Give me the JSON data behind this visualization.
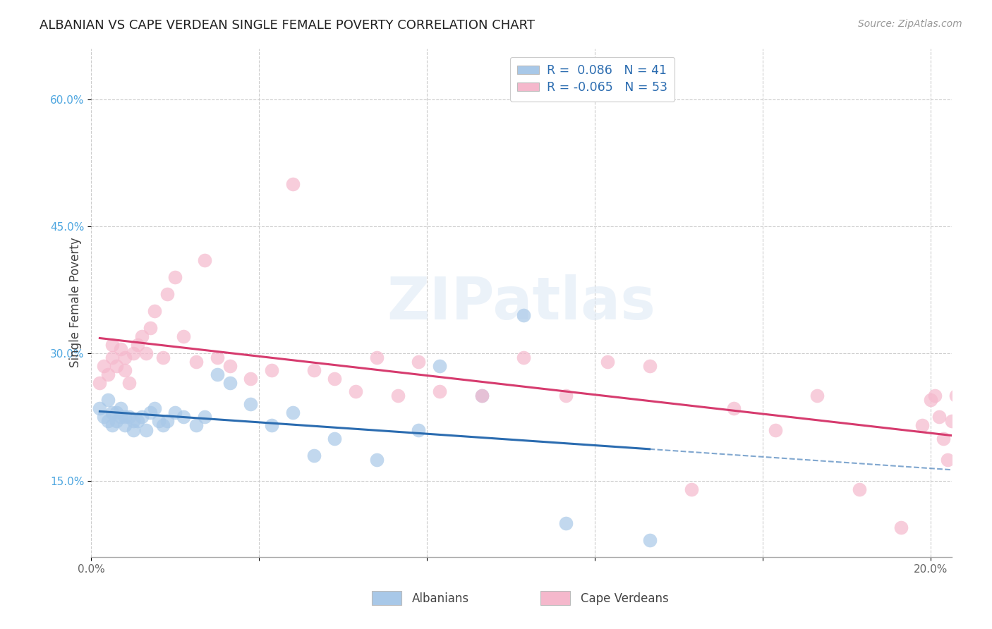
{
  "title": "ALBANIAN VS CAPE VERDEAN SINGLE FEMALE POVERTY CORRELATION CHART",
  "source": "Source: ZipAtlas.com",
  "ylabel": "Single Female Poverty",
  "ytick_vals": [
    0.15,
    0.3,
    0.45,
    0.6
  ],
  "ytick_labels": [
    "15.0%",
    "30.0%",
    "45.0%",
    "60.0%"
  ],
  "xtick_vals": [
    0.0,
    0.04,
    0.08,
    0.12,
    0.16,
    0.2
  ],
  "xtick_labels": [
    "0.0%",
    "",
    "",
    "",
    "",
    "20.0%"
  ],
  "xlim": [
    0.0,
    0.205
  ],
  "ylim": [
    0.06,
    0.66
  ],
  "albanian_color": "#a8c8e8",
  "capeverdean_color": "#f5b8cc",
  "albanian_line_color": "#2b6cb0",
  "capeverdean_line_color": "#d63b6e",
  "watermark": "ZIPatlas",
  "legend_label1": "Albanians",
  "legend_label2": "Cape Verdeans",
  "legend_r1": "R =  0.086",
  "legend_n1": "N = 41",
  "legend_r2": "R = -0.065",
  "legend_n2": "N = 53",
  "albanian_R": 0.086,
  "capeverdean_R": -0.065,
  "albanian_x": [
    0.002,
    0.003,
    0.004,
    0.004,
    0.005,
    0.005,
    0.006,
    0.006,
    0.007,
    0.007,
    0.008,
    0.008,
    0.009,
    0.01,
    0.01,
    0.011,
    0.012,
    0.013,
    0.014,
    0.015,
    0.016,
    0.017,
    0.018,
    0.02,
    0.022,
    0.025,
    0.027,
    0.03,
    0.033,
    0.038,
    0.043,
    0.048,
    0.053,
    0.058,
    0.068,
    0.078,
    0.083,
    0.093,
    0.103,
    0.113,
    0.133
  ],
  "albanian_y": [
    0.235,
    0.225,
    0.245,
    0.22,
    0.23,
    0.215,
    0.23,
    0.22,
    0.225,
    0.235,
    0.225,
    0.215,
    0.225,
    0.22,
    0.21,
    0.22,
    0.225,
    0.21,
    0.23,
    0.235,
    0.22,
    0.215,
    0.22,
    0.23,
    0.225,
    0.215,
    0.225,
    0.275,
    0.265,
    0.24,
    0.215,
    0.23,
    0.18,
    0.2,
    0.175,
    0.21,
    0.285,
    0.25,
    0.345,
    0.1,
    0.08
  ],
  "capeverdean_x": [
    0.002,
    0.003,
    0.004,
    0.005,
    0.005,
    0.006,
    0.007,
    0.008,
    0.008,
    0.009,
    0.01,
    0.011,
    0.012,
    0.013,
    0.014,
    0.015,
    0.017,
    0.018,
    0.02,
    0.022,
    0.025,
    0.027,
    0.03,
    0.033,
    0.038,
    0.043,
    0.048,
    0.053,
    0.058,
    0.063,
    0.068,
    0.073,
    0.078,
    0.083,
    0.093,
    0.103,
    0.113,
    0.123,
    0.133,
    0.143,
    0.153,
    0.163,
    0.173,
    0.183,
    0.193,
    0.198,
    0.2,
    0.201,
    0.202,
    0.203,
    0.204,
    0.205,
    0.206
  ],
  "capeverdean_y": [
    0.265,
    0.285,
    0.275,
    0.31,
    0.295,
    0.285,
    0.305,
    0.28,
    0.295,
    0.265,
    0.3,
    0.31,
    0.32,
    0.3,
    0.33,
    0.35,
    0.295,
    0.37,
    0.39,
    0.32,
    0.29,
    0.41,
    0.295,
    0.285,
    0.27,
    0.28,
    0.5,
    0.28,
    0.27,
    0.255,
    0.295,
    0.25,
    0.29,
    0.255,
    0.25,
    0.295,
    0.25,
    0.29,
    0.285,
    0.14,
    0.235,
    0.21,
    0.25,
    0.14,
    0.095,
    0.215,
    0.245,
    0.25,
    0.225,
    0.2,
    0.175,
    0.22,
    0.25
  ]
}
